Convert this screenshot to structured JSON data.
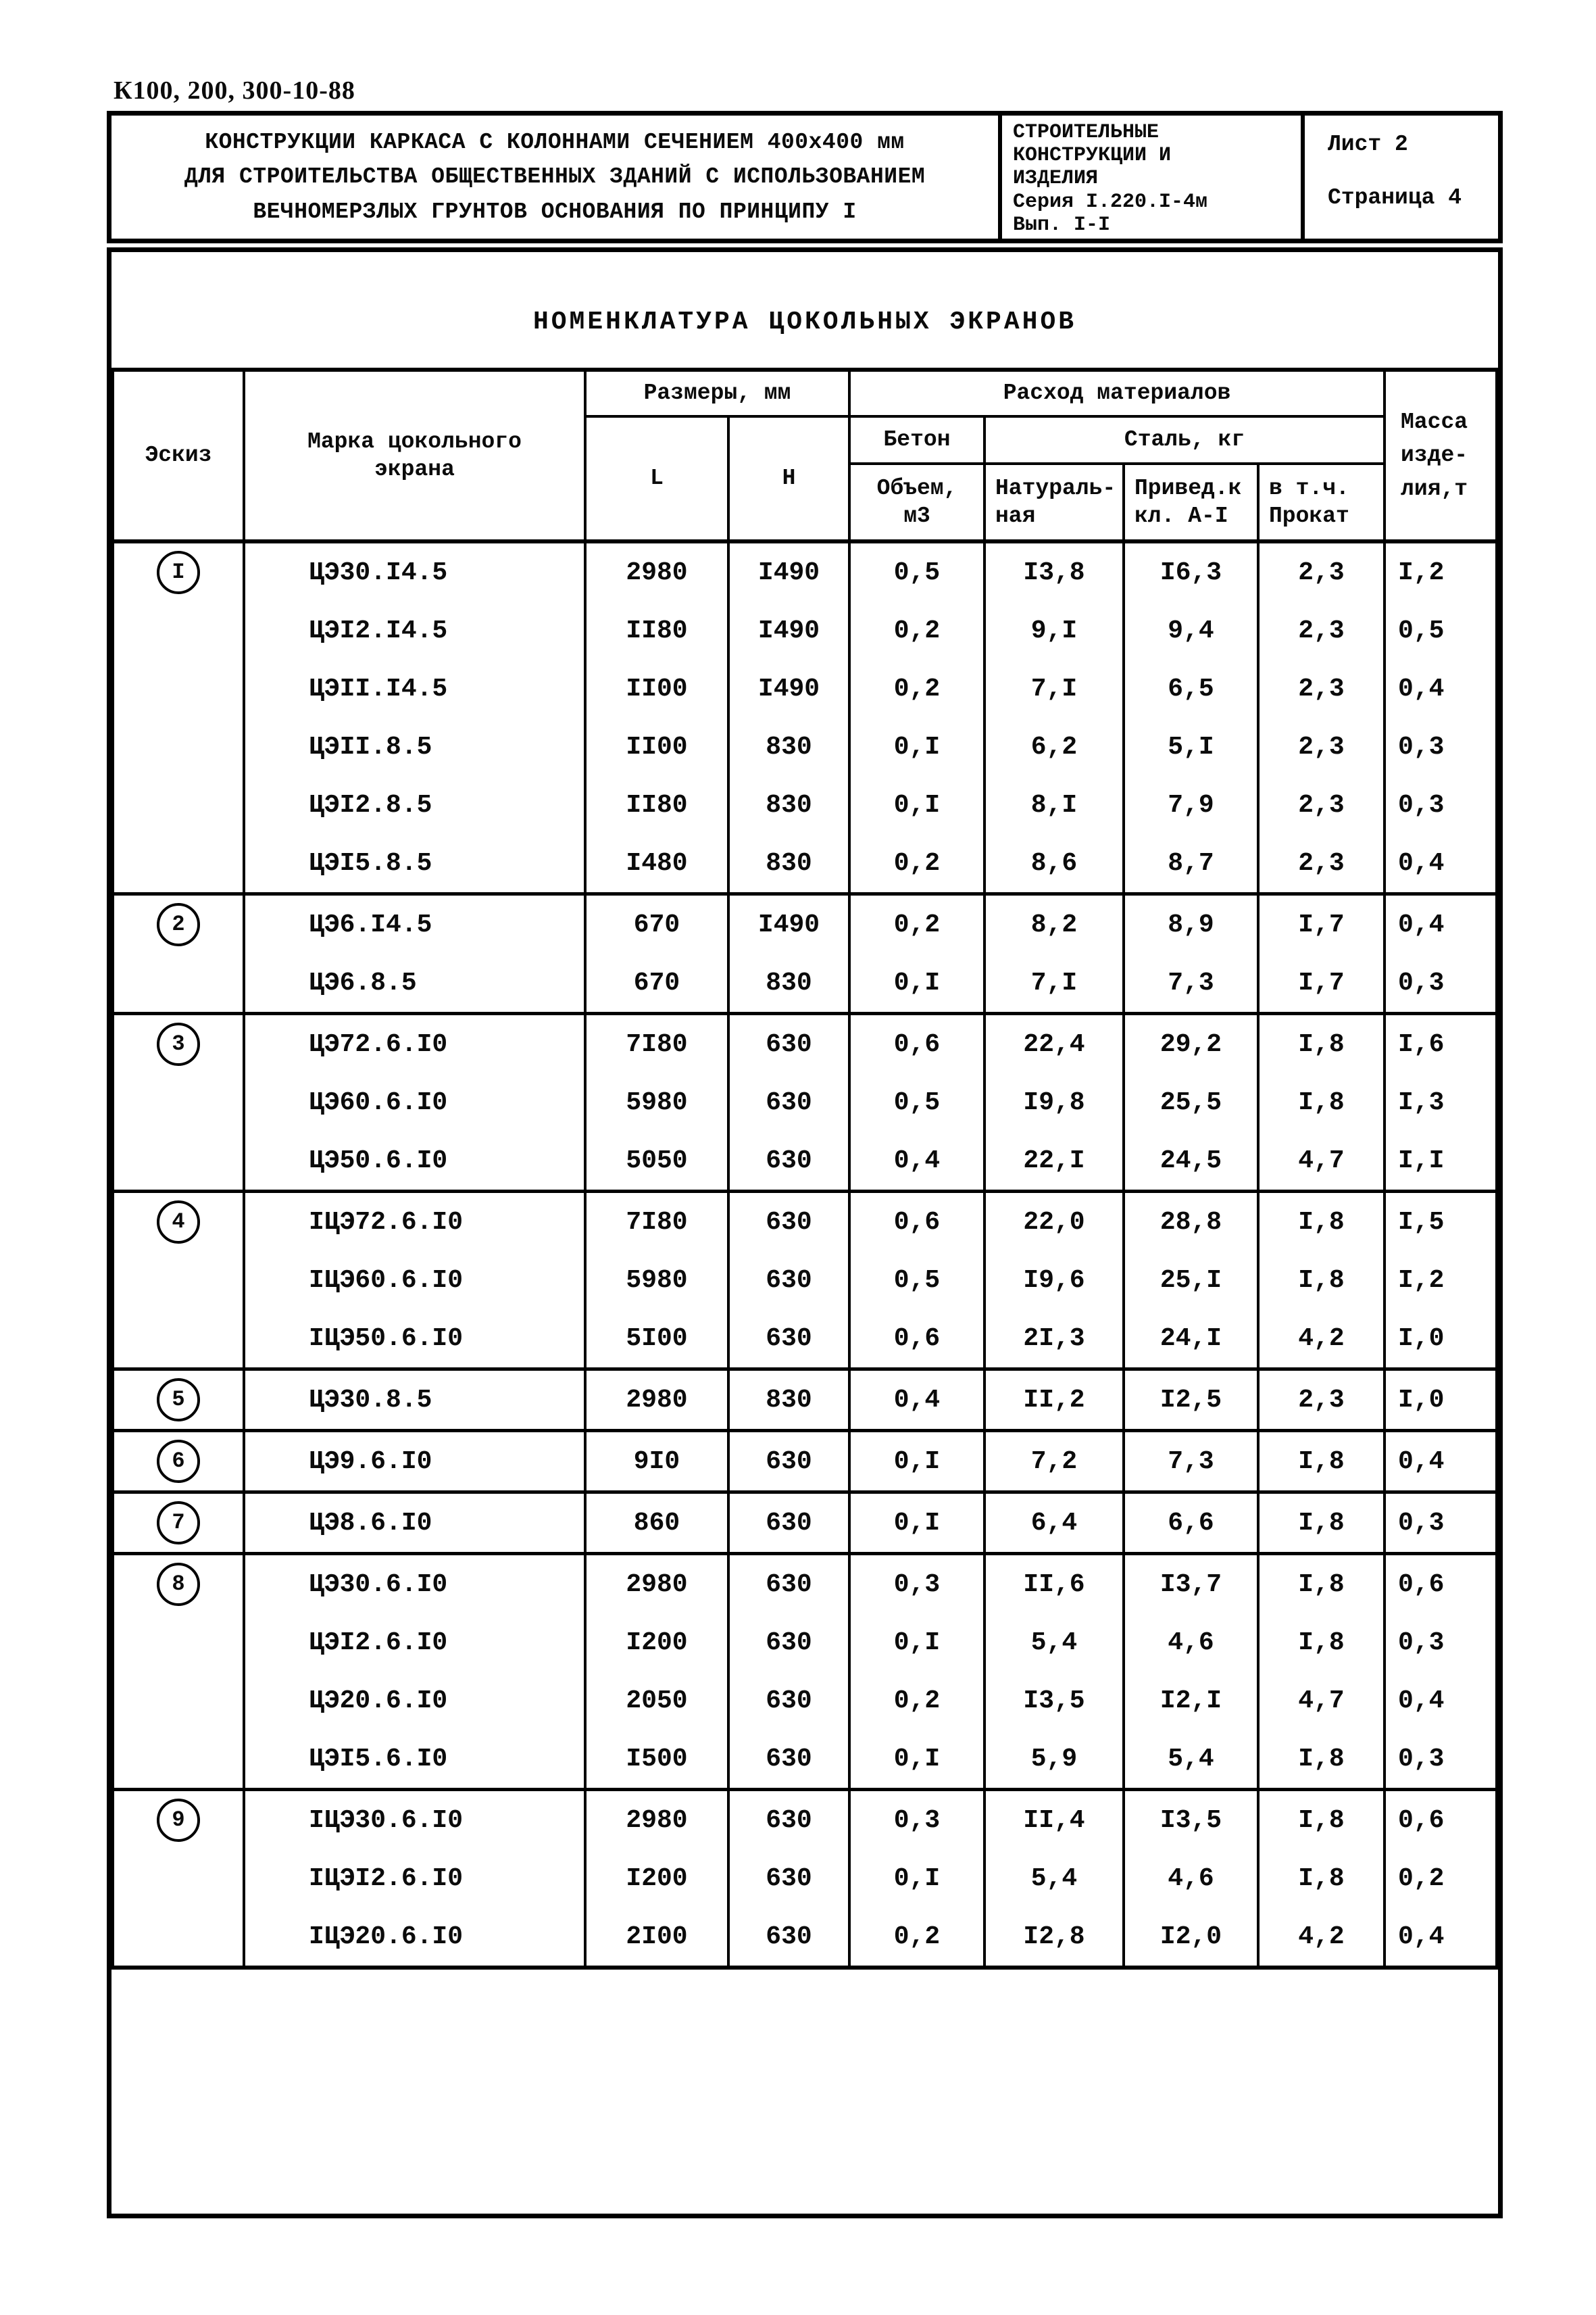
{
  "stamp": "К100, 200, 300-10-88",
  "header": {
    "title": "КОНСТРУКЦИИ КАРКАСА С КОЛОННАМИ СЕЧЕНИЕМ 400х400 мм\nДЛЯ СТРОИТЕЛЬСТВА ОБЩЕСТВЕННЫХ ЗДАНИЙ С ИСПОЛЬЗОВАНИЕМ\nВЕЧНОМЕРЗЛЫХ ГРУНТОВ ОСНОВАНИЯ ПО ПРИНЦИПУ I",
    "series_block": "СТРОИТЕЛЬНЫЕ\nКОНСТРУКЦИИ И\nИЗДЕЛИЯ\nСерия I.220.I-4м\nВып. I-I",
    "sheet_label": "Лист 2",
    "page_label": "Страница 4"
  },
  "table": {
    "title": "НОМЕНКЛАТУРА ЦОКОЛЬНЫХ ЭКРАНОВ",
    "headers": {
      "sketch": "Эскиз",
      "mark": "Марка цокольного\nэкрана",
      "dimensions": "Размеры, мм",
      "dim_l": "L",
      "dim_h": "Н",
      "materials": "Расход материалов",
      "concrete": "Бетон",
      "concrete_volume": "Объем,\nм3",
      "steel": "Сталь, кг",
      "steel_natural": "Натураль-\nная",
      "steel_reduced": "Привед.к\nкл. А-I",
      "steel_rolled": "в т.ч.\nПрокат",
      "mass": "Масса\nизде-\nлия,т"
    },
    "groups": [
      {
        "num": "I",
        "rows": [
          [
            "ЦЭ30.I4.5",
            "2980",
            "I490",
            "0,5",
            "I3,8",
            "I6,3",
            "2,3",
            "I,2"
          ],
          [
            "ЦЭI2.I4.5",
            "II80",
            "I490",
            "0,2",
            "9,I",
            "9,4",
            "2,3",
            "0,5"
          ],
          [
            "ЦЭII.I4.5",
            "II00",
            "I490",
            "0,2",
            "7,I",
            "6,5",
            "2,3",
            "0,4"
          ],
          [
            "ЦЭII.8.5",
            "II00",
            "830",
            "0,I",
            "6,2",
            "5,I",
            "2,3",
            "0,3"
          ],
          [
            "ЦЭI2.8.5",
            "II80",
            "830",
            "0,I",
            "8,I",
            "7,9",
            "2,3",
            "0,3"
          ],
          [
            "ЦЭI5.8.5",
            "I480",
            "830",
            "0,2",
            "8,6",
            "8,7",
            "2,3",
            "0,4"
          ]
        ]
      },
      {
        "num": "2",
        "rows": [
          [
            "ЦЭ6.I4.5",
            "670",
            "I490",
            "0,2",
            "8,2",
            "8,9",
            "I,7",
            "0,4"
          ],
          [
            "ЦЭ6.8.5",
            "670",
            "830",
            "0,I",
            "7,I",
            "7,3",
            "I,7",
            "0,3"
          ]
        ]
      },
      {
        "num": "3",
        "rows": [
          [
            "ЦЭ72.6.I0",
            "7I80",
            "630",
            "0,6",
            "22,4",
            "29,2",
            "I,8",
            "I,6"
          ],
          [
            "ЦЭ60.6.I0",
            "5980",
            "630",
            "0,5",
            "I9,8",
            "25,5",
            "I,8",
            "I,3"
          ],
          [
            "ЦЭ50.6.I0",
            "5050",
            "630",
            "0,4",
            "22,I",
            "24,5",
            "4,7",
            "I,I"
          ]
        ]
      },
      {
        "num": "4",
        "rows": [
          [
            "IЦЭ72.6.I0",
            "7I80",
            "630",
            "0,6",
            "22,0",
            "28,8",
            "I,8",
            "I,5"
          ],
          [
            "IЦЭ60.6.I0",
            "5980",
            "630",
            "0,5",
            "I9,6",
            "25,I",
            "I,8",
            "I,2"
          ],
          [
            "IЦЭ50.6.I0",
            "5I00",
            "630",
            "0,6",
            "2I,3",
            "24,I",
            "4,2",
            "I,0"
          ]
        ]
      },
      {
        "num": "5",
        "rows": [
          [
            "ЦЭ30.8.5",
            "2980",
            "830",
            "0,4",
            "II,2",
            "I2,5",
            "2,3",
            "I,0"
          ]
        ]
      },
      {
        "num": "6",
        "rows": [
          [
            "ЦЭ9.6.I0",
            "9I0",
            "630",
            "0,I",
            "7,2",
            "7,3",
            "I,8",
            "0,4"
          ]
        ]
      },
      {
        "num": "7",
        "rows": [
          [
            "ЦЭ8.6.I0",
            "860",
            "630",
            "0,I",
            "6,4",
            "6,6",
            "I,8",
            "0,3"
          ]
        ]
      },
      {
        "num": "8",
        "rows": [
          [
            "ЦЭ30.6.I0",
            "2980",
            "630",
            "0,3",
            "II,6",
            "I3,7",
            "I,8",
            "0,6"
          ],
          [
            "ЦЭI2.6.I0",
            "I200",
            "630",
            "0,I",
            "5,4",
            "4,6",
            "I,8",
            "0,3"
          ],
          [
            "ЦЭ20.6.I0",
            "2050",
            "630",
            "0,2",
            "I3,5",
            "I2,I",
            "4,7",
            "0,4"
          ],
          [
            "ЦЭI5.6.I0",
            "I500",
            "630",
            "0,I",
            "5,9",
            "5,4",
            "I,8",
            "0,3"
          ]
        ]
      },
      {
        "num": "9",
        "rows": [
          [
            "IЦЭ30.6.I0",
            "2980",
            "630",
            "0,3",
            "II,4",
            "I3,5",
            "I,8",
            "0,6"
          ],
          [
            "IЦЭI2.6.I0",
            "I200",
            "630",
            "0,I",
            "5,4",
            "4,6",
            "I,8",
            "0,2"
          ],
          [
            "IЦЭ20.6.I0",
            "2I00",
            "630",
            "0,2",
            "I2,8",
            "I2,0",
            "4,2",
            "0,4"
          ]
        ]
      }
    ]
  }
}
